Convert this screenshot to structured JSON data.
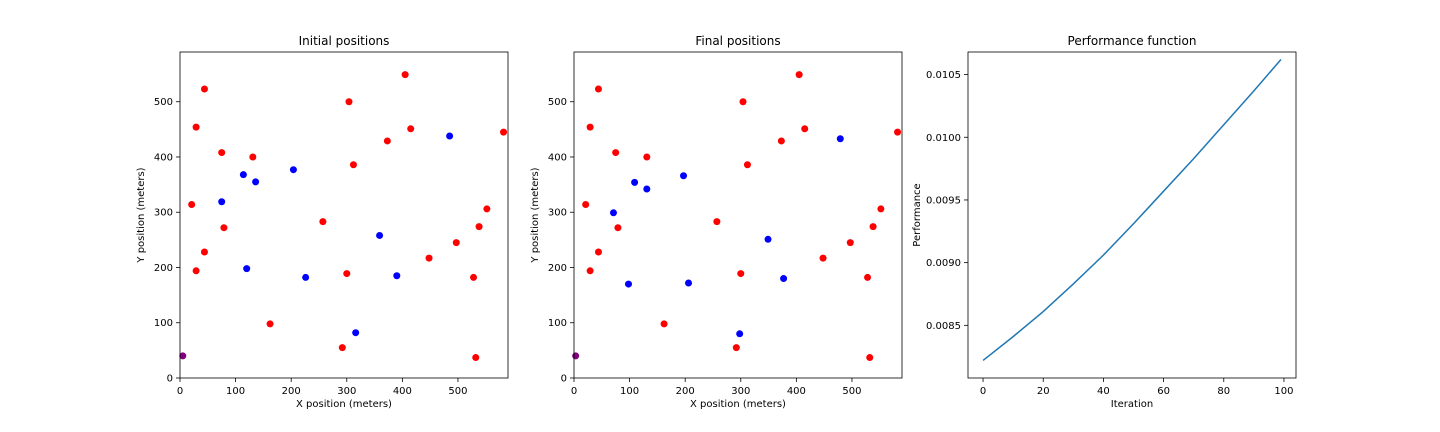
{
  "colors": {
    "red": "#ff0000",
    "blue": "#0000ff",
    "purple": "#800080",
    "line": "#1f77b4"
  },
  "chart_data": [
    {
      "type": "scatter",
      "title": "Initial positions",
      "xlabel": "X position (meters)",
      "ylabel": "Y position (meters)",
      "xlim": [
        0,
        590
      ],
      "ylim": [
        0,
        590
      ],
      "xticks": [
        0,
        100,
        200,
        300,
        400,
        500
      ],
      "yticks": [
        0,
        100,
        200,
        300,
        400,
        500
      ],
      "grid": false,
      "series": [
        {
          "color": "#ff0000",
          "points": [
            [
              44,
              523
            ],
            [
              29,
              454
            ],
            [
              75,
              408
            ],
            [
              131,
              400
            ],
            [
              21,
              314
            ],
            [
              79,
              272
            ],
            [
              44,
              228
            ],
            [
              29,
              194
            ],
            [
              162,
              98
            ],
            [
              257,
              283
            ],
            [
              304,
              500
            ],
            [
              312,
              386
            ],
            [
              300,
              189
            ],
            [
              292,
              55
            ],
            [
              405,
              549
            ],
            [
              415,
              451
            ],
            [
              373,
              429
            ],
            [
              448,
              217
            ],
            [
              497,
              245
            ],
            [
              528,
              182
            ],
            [
              538,
              274
            ],
            [
              552,
              306
            ],
            [
              532,
              37
            ],
            [
              582,
              445
            ]
          ]
        },
        {
          "color": "#0000ff",
          "points": [
            [
              114,
              368
            ],
            [
              136,
              355
            ],
            [
              75,
              319
            ],
            [
              204,
              377
            ],
            [
              120,
              198
            ],
            [
              226,
              182
            ],
            [
              316,
              82
            ],
            [
              359,
              258
            ],
            [
              390,
              185
            ],
            [
              485,
              438
            ]
          ]
        },
        {
          "color": "#800080",
          "points": [
            [
              5,
              40
            ]
          ]
        }
      ]
    },
    {
      "type": "scatter",
      "title": "Final positions",
      "xlabel": "X position (meters)",
      "ylabel": "Y position (meters)",
      "xlim": [
        0,
        590
      ],
      "ylim": [
        0,
        590
      ],
      "xticks": [
        0,
        100,
        200,
        300,
        400,
        500
      ],
      "yticks": [
        0,
        100,
        200,
        300,
        400,
        500
      ],
      "grid": false,
      "series": [
        {
          "color": "#ff0000",
          "points": [
            [
              44,
              523
            ],
            [
              29,
              454
            ],
            [
              75,
              408
            ],
            [
              131,
              400
            ],
            [
              21,
              314
            ],
            [
              79,
              272
            ],
            [
              44,
              228
            ],
            [
              29,
              194
            ],
            [
              162,
              98
            ],
            [
              257,
              283
            ],
            [
              304,
              500
            ],
            [
              312,
              386
            ],
            [
              300,
              189
            ],
            [
              292,
              55
            ],
            [
              405,
              549
            ],
            [
              415,
              451
            ],
            [
              373,
              429
            ],
            [
              448,
              217
            ],
            [
              497,
              245
            ],
            [
              528,
              182
            ],
            [
              538,
              274
            ],
            [
              552,
              306
            ],
            [
              532,
              37
            ],
            [
              582,
              445
            ]
          ]
        },
        {
          "color": "#0000ff",
          "points": [
            [
              109,
              354
            ],
            [
              131,
              342
            ],
            [
              71,
              299
            ],
            [
              197,
              366
            ],
            [
              98,
              170
            ],
            [
              206,
              172
            ],
            [
              298,
              80
            ],
            [
              349,
              251
            ],
            [
              377,
              180
            ],
            [
              479,
              433
            ]
          ]
        },
        {
          "color": "#800080",
          "points": [
            [
              3,
              40
            ]
          ]
        }
      ]
    },
    {
      "type": "line",
      "title": "Performance function",
      "xlabel": "Iteration",
      "ylabel": "Performance",
      "xlim": [
        -5,
        104
      ],
      "ylim": [
        0.00808,
        0.01068
      ],
      "xticks": [
        0,
        20,
        40,
        60,
        80,
        100
      ],
      "yticks": [
        0.0085,
        0.009,
        0.0095,
        0.01,
        0.0105
      ],
      "ytick_labels": [
        "0.0085",
        "0.0090",
        "0.0095",
        "0.0100",
        "0.0105"
      ],
      "grid": false,
      "series": [
        {
          "color": "#1f77b4",
          "points": [
            [
              0,
              0.00822
            ],
            [
              10,
              0.00841
            ],
            [
              20,
              0.00861
            ],
            [
              30,
              0.00883
            ],
            [
              40,
              0.00906
            ],
            [
              50,
              0.00931
            ],
            [
              60,
              0.00957
            ],
            [
              70,
              0.00983
            ],
            [
              80,
              0.0101
            ],
            [
              90,
              0.01037
            ],
            [
              99,
              0.01062
            ]
          ]
        }
      ]
    }
  ]
}
